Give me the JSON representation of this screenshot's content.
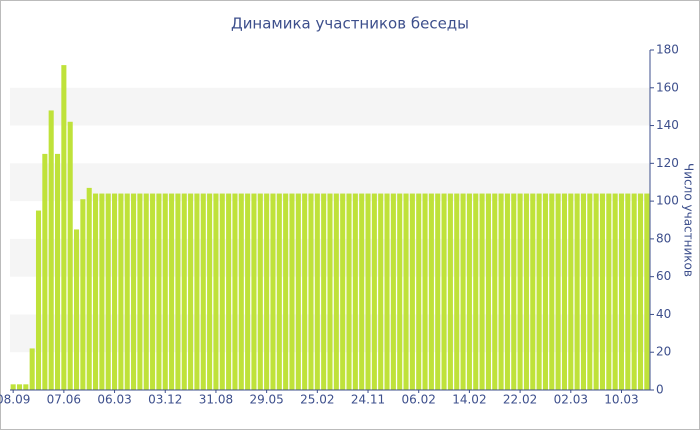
{
  "chart_data": {
    "type": "bar",
    "title": "Динамика участников беседы",
    "y_label": "Число участников",
    "categories": [
      "08.09",
      null,
      null,
      null,
      null,
      null,
      null,
      null,
      "07.06",
      null,
      null,
      null,
      null,
      null,
      null,
      null,
      "06.03",
      null,
      null,
      null,
      null,
      null,
      null,
      null,
      "03.12",
      null,
      null,
      null,
      null,
      null,
      null,
      null,
      "31.08",
      null,
      null,
      null,
      null,
      null,
      null,
      null,
      "29.05",
      null,
      null,
      null,
      null,
      null,
      null,
      null,
      "25.02",
      null,
      null,
      null,
      null,
      null,
      null,
      null,
      "24.11",
      null,
      null,
      null,
      null,
      null,
      null,
      null,
      "06.02",
      null,
      null,
      null,
      null,
      null,
      null,
      null,
      "14.02",
      null,
      null,
      null,
      null,
      null,
      null,
      null,
      "22.02",
      null,
      null,
      null,
      null,
      null,
      null,
      null,
      "02.03",
      null,
      null,
      null,
      null,
      null,
      null,
      null,
      "10.03",
      null,
      null,
      null,
      null
    ],
    "values": [
      3,
      3,
      3,
      22,
      95,
      125,
      148,
      125,
      172,
      142,
      85,
      101,
      107,
      104,
      104,
      104,
      104,
      104,
      104,
      104,
      104,
      104,
      104,
      104,
      104,
      104,
      104,
      104,
      104,
      104,
      104,
      104,
      104,
      104,
      104,
      104,
      104,
      104,
      104,
      104,
      104,
      104,
      104,
      104,
      104,
      104,
      104,
      104,
      104,
      104,
      104,
      104,
      104,
      104,
      104,
      104,
      104,
      104,
      104,
      104,
      104,
      104,
      104,
      104,
      104,
      104,
      104,
      104,
      104,
      104,
      104,
      104,
      104,
      104,
      104,
      104,
      104,
      104,
      104,
      104,
      104,
      104,
      104,
      104,
      104,
      104,
      104,
      104,
      104,
      104,
      104,
      104,
      104,
      104,
      104,
      104,
      104,
      104,
      104,
      104,
      104
    ],
    "color": "#bfe23a",
    "ylim": [
      0,
      180
    ],
    "yticks": [
      0,
      20,
      40,
      60,
      80,
      100,
      120,
      140,
      160,
      180
    ],
    "grid": true,
    "y_axis_side": "right"
  }
}
